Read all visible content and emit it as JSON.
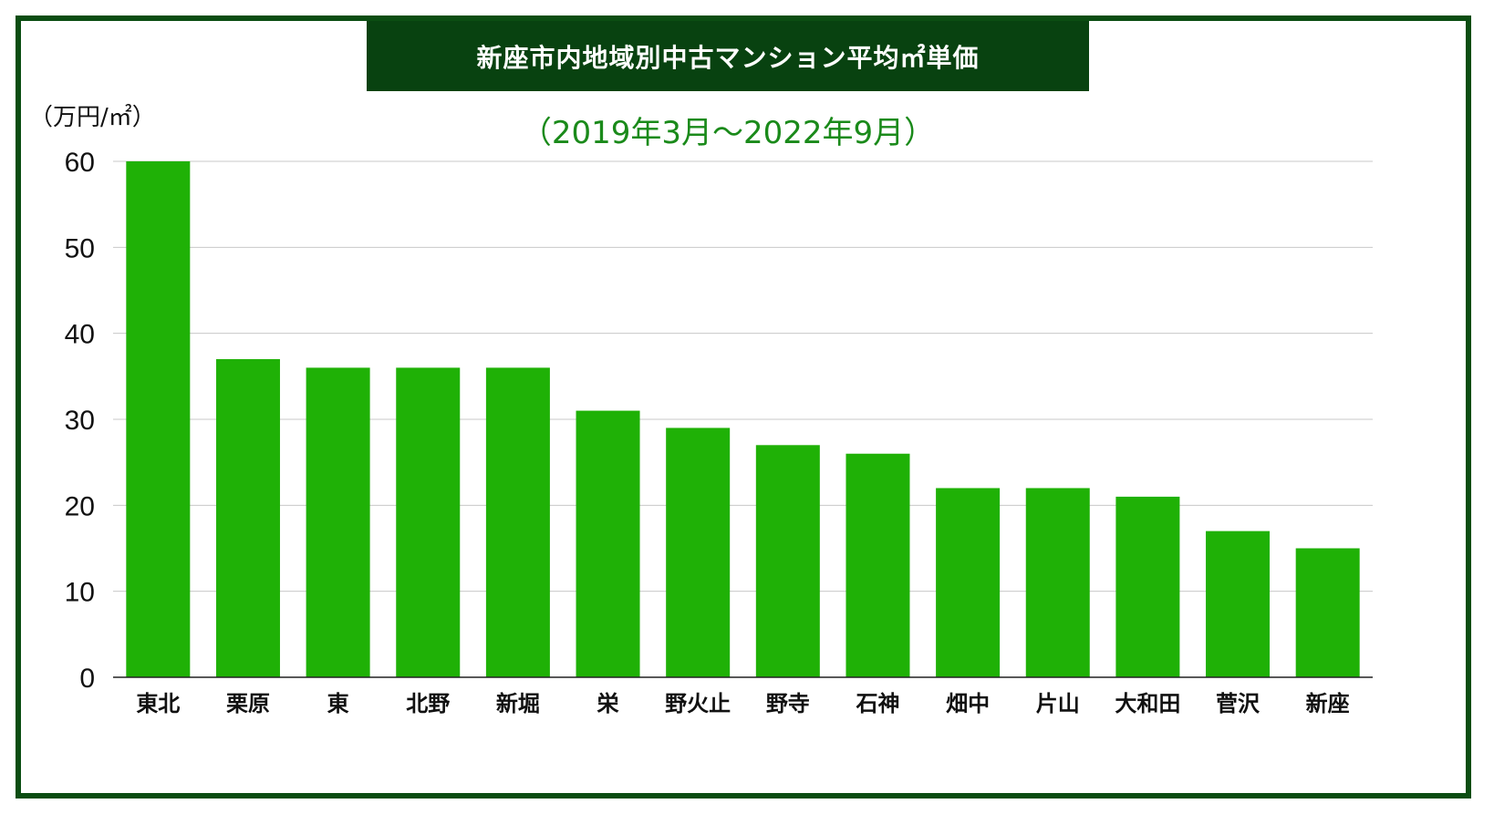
{
  "chart_data": {
    "type": "bar",
    "title": "新座市内地域別中古マンション平均㎡単価",
    "subtitle": "（2019年3月〜2022年9月）",
    "ylabel": "（万円/㎡）",
    "xlabel": "",
    "categories": [
      "東北",
      "栗原",
      "東",
      "北野",
      "新堀",
      "栄",
      "野火止",
      "野寺",
      "石神",
      "畑中",
      "片山",
      "大和田",
      "菅沢",
      "新座"
    ],
    "values": [
      60,
      37,
      36,
      36,
      36,
      31,
      29,
      27,
      26,
      22,
      22,
      21,
      17,
      15
    ],
    "ylim": [
      0,
      60
    ],
    "yticks": [
      0,
      10,
      20,
      30,
      40,
      50,
      60
    ],
    "grid": true,
    "legend": "none",
    "colors": {
      "bar": "#1fb106",
      "frame": "#0b4d12",
      "title_bg": "#084210",
      "subtitle": "#1a8a1a",
      "grid": "#c8c8c8"
    }
  }
}
